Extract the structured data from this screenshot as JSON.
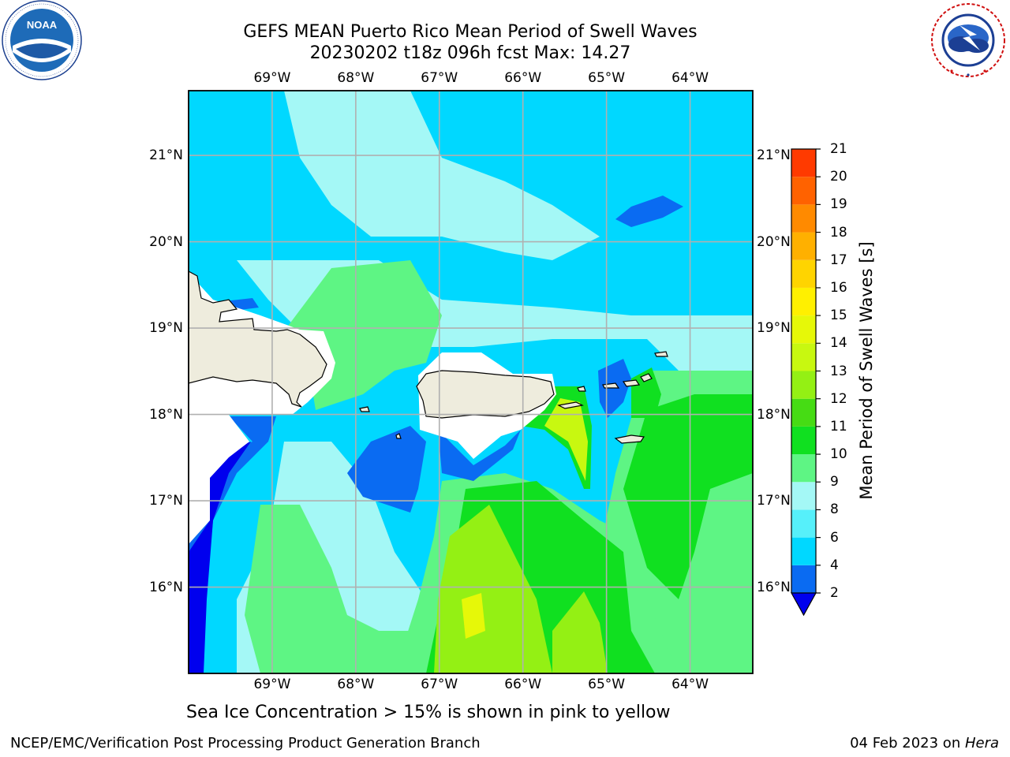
{
  "header": {
    "title_line1": "GEFS MEAN Puerto Rico Mean Period of Swell Waves",
    "title_line2": "20230202 t18z 096h fcst   Max: 14.27"
  },
  "logos": {
    "left": {
      "icon": "noaa-logo",
      "text": "NOAA",
      "ring_text": "NATIONAL OCEANIC AND ATMOSPHERIC ADMINISTRATION · U.S. DEPARTMENT OF COMMERCE"
    },
    "right": {
      "icon": "nws-logo",
      "ring_text": "NATIONAL WEATHER SERVICE"
    }
  },
  "map": {
    "lon_labels": [
      "69°W",
      "68°W",
      "67°W",
      "66°W",
      "65°W",
      "64°W"
    ],
    "lat_labels": [
      "21°N",
      "20°N",
      "19°N",
      "18°N",
      "17°N",
      "16°N"
    ],
    "lon_range": [
      -70.0,
      -63.25
    ],
    "lat_range": [
      15.0,
      21.75
    ],
    "land_color": "#eeecdd",
    "grid_color": "#b0b0b0"
  },
  "colorbar": {
    "label": "Mean Period of Swell Waves [s]",
    "ticks": [
      "2",
      "4",
      "6",
      "8",
      "9",
      "10",
      "11",
      "12",
      "13",
      "14",
      "15",
      "16",
      "17",
      "18",
      "19",
      "20",
      "21"
    ],
    "colors": [
      "#0a6bf2",
      "#00d8ff",
      "#56f0fa",
      "#a4f8f6",
      "#5ef584",
      "#10e020",
      "#46dc14",
      "#94f014",
      "#c8f810",
      "#e6f808",
      "#fff000",
      "#ffd400",
      "#ffb000",
      "#ff8a00",
      "#ff6200",
      "#ff3a00",
      "#ff0f00"
    ],
    "extend_color": "#0000ee"
  },
  "caption": "Sea Ice Concentration > 15% is shown in pink to yellow",
  "footer": {
    "left": "NCEP/EMC/Verification Post Processing Product Generation Branch",
    "right_date": "04 Feb 2023 on ",
    "right_host": "Hera"
  }
}
